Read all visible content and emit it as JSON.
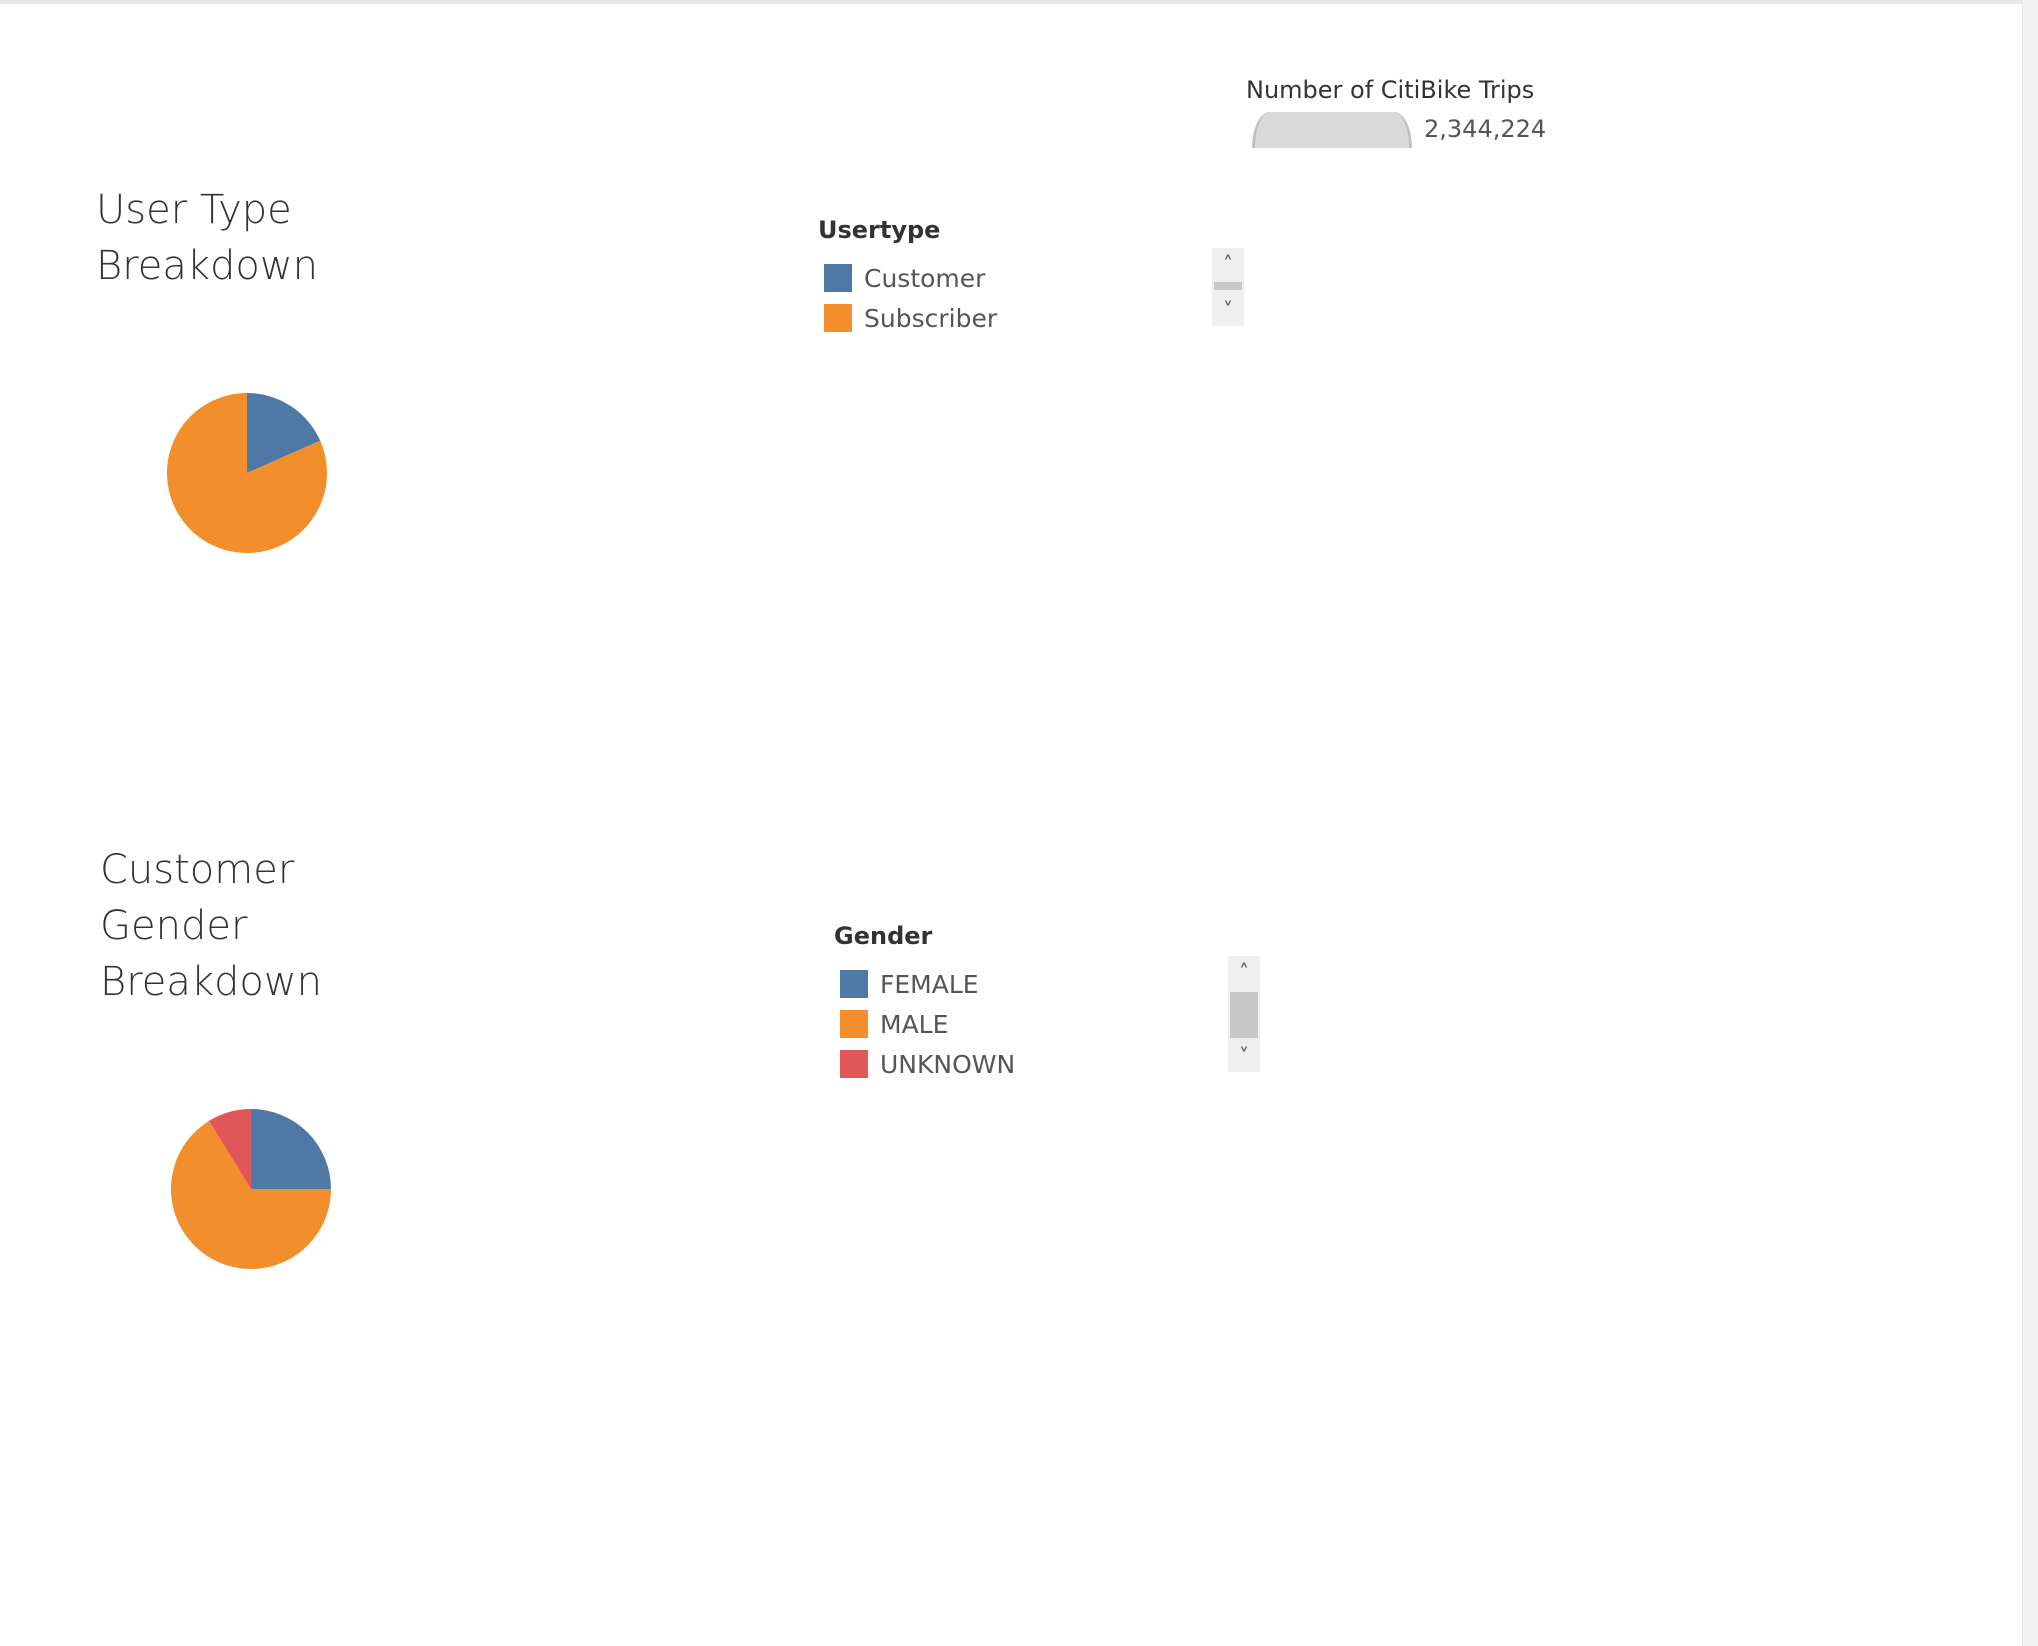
{
  "size_legend": {
    "title": "Number of CitiBike Trips",
    "value": "2,344,224"
  },
  "user_section": {
    "title_line1": "User Type",
    "title_line2": "Breakdown",
    "legend_title": "Usertype",
    "legend_items": [
      {
        "label": "Customer",
        "color": "#4e79a7"
      },
      {
        "label": "Subscriber",
        "color": "#f28e2b"
      }
    ]
  },
  "gender_section": {
    "title_line1": "Customer",
    "title_line2": "Gender",
    "title_line3": "Breakdown",
    "legend_title": "Gender",
    "legend_items": [
      {
        "label": "FEMALE",
        "color": "#4e79a7"
      },
      {
        "label": "MALE",
        "color": "#f28e2b"
      },
      {
        "label": "UNKNOWN",
        "color": "#e15759"
      }
    ]
  },
  "icons": {
    "scroll_up": "˄",
    "scroll_down": "˅"
  },
  "chart_data": [
    {
      "type": "pie",
      "categories": [
        "Customer",
        "Subscriber"
      ],
      "values": [
        18.4,
        81.6
      ],
      "colors": [
        "#4e79a7",
        "#f28e2b"
      ]
    },
    {
      "type": "pie",
      "categories": [
        "FEMALE",
        "MALE",
        "UNKNOWN"
      ],
      "values": [
        25,
        66.2,
        8.8
      ],
      "colors": [
        "#4e79a7",
        "#f28e2b",
        "#e15759"
      ]
    }
  ]
}
